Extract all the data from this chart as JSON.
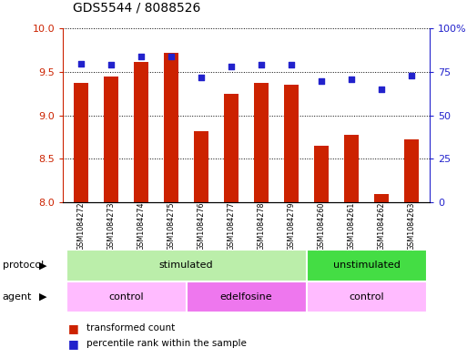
{
  "title": "GDS5544 / 8088526",
  "samples": [
    "GSM1084272",
    "GSM1084273",
    "GSM1084274",
    "GSM1084275",
    "GSM1084276",
    "GSM1084277",
    "GSM1084278",
    "GSM1084279",
    "GSM1084260",
    "GSM1084261",
    "GSM1084262",
    "GSM1084263"
  ],
  "transformed_count": [
    9.38,
    9.45,
    9.62,
    9.72,
    8.82,
    9.25,
    9.37,
    9.35,
    8.65,
    8.78,
    8.1,
    8.72
  ],
  "percentile_rank": [
    80,
    79,
    84,
    84,
    72,
    78,
    79,
    79,
    70,
    71,
    65,
    73
  ],
  "ylim_left": [
    8.0,
    10.0
  ],
  "ylim_right": [
    0,
    100
  ],
  "yticks_left": [
    8.0,
    8.5,
    9.0,
    9.5,
    10.0
  ],
  "yticks_right": [
    0,
    25,
    50,
    75,
    100
  ],
  "bar_color": "#cc2200",
  "dot_color": "#2222cc",
  "bar_width": 0.5,
  "protocol_groups": [
    {
      "label": "stimulated",
      "start": 0,
      "end": 8,
      "color": "#bbeeaa"
    },
    {
      "label": "unstimulated",
      "start": 8,
      "end": 12,
      "color": "#44dd44"
    }
  ],
  "agent_groups": [
    {
      "label": "control",
      "start": 0,
      "end": 4,
      "color": "#ffbbff"
    },
    {
      "label": "edelfosine",
      "start": 4,
      "end": 8,
      "color": "#ee77ee"
    },
    {
      "label": "control",
      "start": 8,
      "end": 12,
      "color": "#ffbbff"
    }
  ],
  "legend_items": [
    {
      "label": "transformed count",
      "color": "#cc2200"
    },
    {
      "label": "percentile rank within the sample",
      "color": "#2222cc"
    }
  ],
  "protocol_label": "protocol",
  "agent_label": "agent",
  "left_axis_color": "#cc2200",
  "right_axis_color": "#2222cc",
  "background_color": "#ffffff",
  "title_fontsize": 10,
  "label_box_color": "#cccccc",
  "label_box_border": "#aaaaaa"
}
